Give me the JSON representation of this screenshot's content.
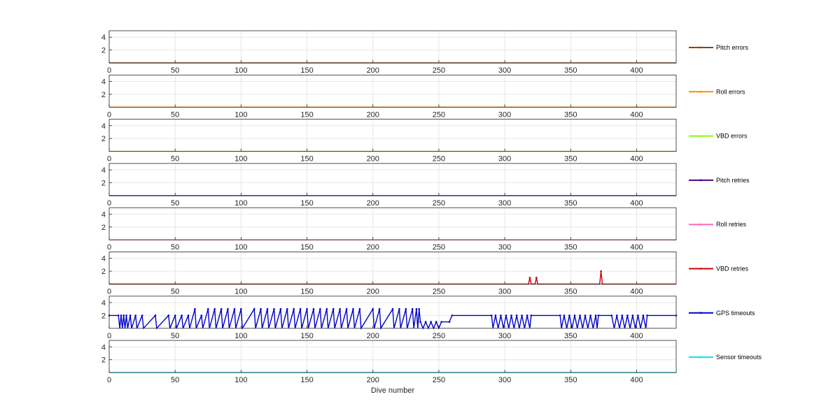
{
  "chart_data": {
    "type": "line",
    "xlabel": "Dive number",
    "xlim": [
      0,
      430
    ],
    "ylim": [
      0,
      5
    ],
    "xticks": [
      "0",
      "50",
      "100",
      "150",
      "200",
      "250",
      "300",
      "350",
      "400"
    ],
    "yticks": [
      "2",
      "4"
    ],
    "grid": true,
    "legend_placement": "right of each subplot",
    "series": [
      {
        "name": "Pitch errors",
        "color": "#8b4513",
        "points": [
          [
            0,
            0
          ],
          [
            430,
            0
          ]
        ]
      },
      {
        "name": "Roll errors",
        "color": "#ff8c00",
        "points": [
          [
            0,
            0
          ],
          [
            430,
            0
          ]
        ]
      },
      {
        "name": "VBD errors",
        "color": "#7fff00",
        "points": [
          [
            0,
            0
          ],
          [
            430,
            0
          ]
        ]
      },
      {
        "name": "Pitch retries",
        "color": "#4b0082",
        "points": [
          [
            0,
            0
          ],
          [
            430,
            0
          ]
        ]
      },
      {
        "name": "Roll retries",
        "color": "#ff69b4",
        "points": [
          [
            0,
            0
          ],
          [
            430,
            0
          ]
        ]
      },
      {
        "name": "VBD retries",
        "color": "#cc0000",
        "points": [
          [
            0,
            0
          ],
          [
            318,
            0
          ],
          [
            319,
            1
          ],
          [
            320,
            0
          ],
          [
            323,
            0
          ],
          [
            324,
            1
          ],
          [
            325,
            0
          ],
          [
            372,
            0
          ],
          [
            373,
            2
          ],
          [
            374,
            0
          ],
          [
            430,
            0
          ]
        ]
      },
      {
        "name": "GPS timeouts",
        "color": "#0000cc",
        "points": [
          [
            0,
            2
          ],
          [
            7,
            2
          ],
          [
            8,
            0
          ],
          [
            9,
            2
          ],
          [
            10,
            0
          ],
          [
            11,
            2
          ],
          [
            12,
            0
          ],
          [
            13,
            2
          ],
          [
            14,
            0
          ],
          [
            16,
            2
          ],
          [
            17,
            0
          ],
          [
            20,
            2
          ],
          [
            21,
            0
          ],
          [
            25,
            2
          ],
          [
            26,
            0
          ],
          [
            35,
            2
          ],
          [
            36,
            0
          ],
          [
            45,
            2
          ],
          [
            46,
            0
          ],
          [
            50,
            2
          ],
          [
            51,
            0
          ],
          [
            55,
            2
          ],
          [
            56,
            0
          ],
          [
            60,
            2
          ],
          [
            61,
            0
          ],
          [
            65,
            3
          ],
          [
            66,
            0
          ],
          [
            70,
            2
          ],
          [
            71,
            0
          ],
          [
            75,
            3
          ],
          [
            76,
            0
          ],
          [
            80,
            3
          ],
          [
            81,
            0
          ],
          [
            85,
            3
          ],
          [
            86,
            0
          ],
          [
            90,
            3
          ],
          [
            91,
            0
          ],
          [
            95,
            3
          ],
          [
            96,
            0
          ],
          [
            100,
            3
          ],
          [
            101,
            0
          ],
          [
            110,
            3
          ],
          [
            111,
            0
          ],
          [
            115,
            3
          ],
          [
            116,
            0
          ],
          [
            120,
            3
          ],
          [
            121,
            0
          ],
          [
            125,
            3
          ],
          [
            126,
            0
          ],
          [
            130,
            3
          ],
          [
            131,
            0
          ],
          [
            135,
            3
          ],
          [
            136,
            0
          ],
          [
            140,
            3
          ],
          [
            141,
            0
          ],
          [
            145,
            3
          ],
          [
            146,
            0
          ],
          [
            150,
            3
          ],
          [
            151,
            0
          ],
          [
            155,
            3
          ],
          [
            156,
            0
          ],
          [
            160,
            3
          ],
          [
            161,
            0
          ],
          [
            165,
            3
          ],
          [
            166,
            0
          ],
          [
            170,
            3
          ],
          [
            171,
            0
          ],
          [
            175,
            3
          ],
          [
            176,
            0
          ],
          [
            180,
            3
          ],
          [
            181,
            0
          ],
          [
            185,
            3
          ],
          [
            186,
            0
          ],
          [
            190,
            3
          ],
          [
            191,
            0
          ],
          [
            200,
            3
          ],
          [
            201,
            0
          ],
          [
            205,
            3
          ],
          [
            206,
            0
          ],
          [
            215,
            3
          ],
          [
            216,
            0
          ],
          [
            220,
            3
          ],
          [
            221,
            0
          ],
          [
            225,
            3
          ],
          [
            226,
            0
          ],
          [
            230,
            3
          ],
          [
            231,
            0
          ],
          [
            233,
            3
          ],
          [
            234,
            0
          ],
          [
            235,
            3
          ],
          [
            236,
            1
          ],
          [
            238,
            0
          ],
          [
            240,
            1
          ],
          [
            242,
            0
          ],
          [
            244,
            1
          ],
          [
            246,
            0
          ],
          [
            248,
            1
          ],
          [
            250,
            0
          ],
          [
            252,
            1
          ],
          [
            258,
            1
          ],
          [
            260,
            2
          ],
          [
            290,
            2
          ],
          [
            291,
            0
          ],
          [
            293,
            2
          ],
          [
            295,
            0
          ],
          [
            297,
            2
          ],
          [
            299,
            0
          ],
          [
            301,
            2
          ],
          [
            303,
            0
          ],
          [
            305,
            2
          ],
          [
            307,
            0
          ],
          [
            309,
            2
          ],
          [
            311,
            0
          ],
          [
            313,
            2
          ],
          [
            315,
            0
          ],
          [
            317,
            2
          ],
          [
            319,
            0
          ],
          [
            320,
            2
          ],
          [
            342,
            2
          ],
          [
            343,
            0
          ],
          [
            345,
            2
          ],
          [
            347,
            0
          ],
          [
            349,
            2
          ],
          [
            351,
            0
          ],
          [
            353,
            2
          ],
          [
            355,
            0
          ],
          [
            357,
            2
          ],
          [
            359,
            0
          ],
          [
            361,
            2
          ],
          [
            363,
            0
          ],
          [
            365,
            2
          ],
          [
            367,
            0
          ],
          [
            369,
            2
          ],
          [
            370,
            0
          ],
          [
            371,
            2
          ],
          [
            381,
            2
          ],
          [
            383,
            0
          ],
          [
            385,
            2
          ],
          [
            387,
            0
          ],
          [
            389,
            2
          ],
          [
            391,
            0
          ],
          [
            393,
            2
          ],
          [
            395,
            0
          ],
          [
            397,
            2
          ],
          [
            399,
            0
          ],
          [
            401,
            2
          ],
          [
            403,
            0
          ],
          [
            405,
            2
          ],
          [
            407,
            0
          ],
          [
            408,
            2
          ],
          [
            430,
            2
          ]
        ]
      },
      {
        "name": "Sensor timeouts",
        "color": "#00e5ee",
        "points": [
          [
            0,
            0
          ],
          [
            430,
            0
          ]
        ]
      }
    ]
  }
}
